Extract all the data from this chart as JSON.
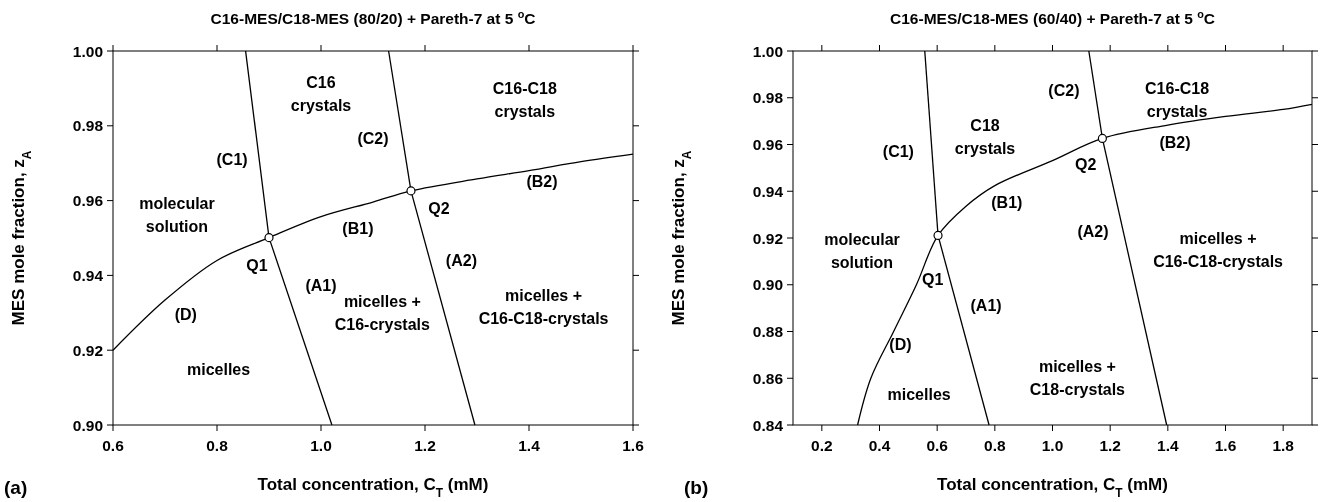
{
  "chart_data": [
    {
      "type": "line",
      "title": "C16-MES/C18-MES (80/20) + Pareth-7 at 5 $^{o}$C",
      "xlabel": "Total concentration, C$_{T}$ (mM)",
      "ylabel": "MES mole fraction, z$_{A}$",
      "xlim": [
        0.6,
        1.6
      ],
      "ylim": [
        0.9,
        1.0
      ],
      "xticks": [
        {
          "value": 0.6,
          "label": "0.6"
        },
        {
          "value": 0.8,
          "label": "0.8"
        },
        {
          "value": 1.0,
          "label": "1.0"
        },
        {
          "value": 1.2,
          "label": "1.2"
        },
        {
          "value": 1.4,
          "label": "1.4"
        },
        {
          "value": 1.6,
          "label": "1.6"
        }
      ],
      "yticks": [
        {
          "value": 0.9,
          "label": "0.90"
        },
        {
          "value": 0.92,
          "label": "0.92"
        },
        {
          "value": 0.94,
          "label": "0.94"
        },
        {
          "value": 0.96,
          "label": "0.96"
        },
        {
          "value": 0.98,
          "label": "0.98"
        },
        {
          "value": 1.0,
          "label": "1.00"
        }
      ],
      "series": [
        {
          "type": "line",
          "color": "#000000",
          "x": [
            0.6,
            0.7,
            0.8,
            0.9,
            1.0,
            1.1,
            1.173,
            1.3,
            1.4,
            1.5,
            1.6
          ],
          "values": [
            0.92,
            0.9334,
            0.944,
            0.9501,
            0.9557,
            0.9596,
            0.9626,
            0.9658,
            0.968,
            0.9704,
            0.9724
          ]
        },
        {
          "type": "line",
          "color": "#000000",
          "x": [
            0.855,
            0.9
          ],
          "values": [
            1.0,
            0.9501
          ]
        },
        {
          "type": "line",
          "color": "#000000",
          "x": [
            0.9,
            1.021
          ],
          "values": [
            0.9501,
            0.9
          ]
        },
        {
          "type": "line",
          "color": "#000000",
          "x": [
            1.13,
            1.173
          ],
          "values": [
            1.0,
            0.9626
          ]
        },
        {
          "type": "line",
          "color": "#000000",
          "x": [
            1.173,
            1.296
          ],
          "values": [
            0.9626,
            0.9
          ]
        },
        {
          "type": "scatter",
          "marker": "circle",
          "color": "#000000",
          "x": [
            0.9,
            1.173
          ],
          "values": [
            0.9501,
            0.9626
          ]
        }
      ],
      "annotations": [
        "C16\ncrystals",
        "C16-C18\ncrystals",
        "(C2)",
        "(C1)",
        "(B2)",
        "molecular\nsolution",
        "Q2",
        "(B1)",
        "Q1",
        "(A2)",
        "(A1)",
        "(D)",
        "micelles +\nC16-crystals",
        "micelles +\nC16-C18-crystals",
        "micelles",
        "(a)"
      ]
    },
    {
      "type": "line",
      "title": "C16-MES/C18-MES (60/40) + Pareth-7 at 5 $^{o}$C",
      "xlabel": "Total concentration, C$_{T}$ (mM)",
      "ylabel": "MES mole fraction, z$_{A}$",
      "xlim": [
        0.1,
        1.9
      ],
      "ylim": [
        0.84,
        1.0
      ],
      "xticks": [
        {
          "value": 0.2,
          "label": "0.2"
        },
        {
          "value": 0.4,
          "label": "0.4"
        },
        {
          "value": 0.6,
          "label": "0.6"
        },
        {
          "value": 0.8,
          "label": "0.8"
        },
        {
          "value": 1.0,
          "label": "1.0"
        },
        {
          "value": 1.2,
          "label": "1.2"
        },
        {
          "value": 1.4,
          "label": "1.4"
        },
        {
          "value": 1.6,
          "label": "1.6"
        },
        {
          "value": 1.8,
          "label": "1.8"
        }
      ],
      "yticks": [
        {
          "value": 0.84,
          "label": "0.84"
        },
        {
          "value": 0.86,
          "label": "0.86"
        },
        {
          "value": 0.88,
          "label": "0.88"
        },
        {
          "value": 0.9,
          "label": "0.90"
        },
        {
          "value": 0.92,
          "label": "0.92"
        },
        {
          "value": 0.94,
          "label": "0.94"
        },
        {
          "value": 0.96,
          "label": "0.96"
        },
        {
          "value": 0.98,
          "label": "0.98"
        },
        {
          "value": 1.0,
          "label": "1.00"
        }
      ],
      "series": [
        {
          "type": "line",
          "color": "#000000",
          "x": [
            0.324,
            0.37,
            0.449,
            0.528,
            0.603,
            0.7,
            0.8,
            1.0,
            1.173,
            1.4,
            1.6,
            1.8,
            1.9
          ],
          "values": [
            0.84,
            0.86,
            0.88,
            0.9,
            0.9211,
            0.9336,
            0.9424,
            0.9531,
            0.9626,
            0.9683,
            0.972,
            0.975,
            0.9772
          ]
        },
        {
          "type": "line",
          "color": "#000000",
          "x": [
            0.557,
            0.603
          ],
          "values": [
            1.0,
            0.9211
          ]
        },
        {
          "type": "line",
          "color": "#000000",
          "x": [
            0.603,
            0.78
          ],
          "values": [
            0.9211,
            0.84
          ]
        },
        {
          "type": "line",
          "color": "#000000",
          "x": [
            1.126,
            1.173
          ],
          "values": [
            1.0,
            0.9626
          ]
        },
        {
          "type": "line",
          "color": "#000000",
          "x": [
            1.173,
            1.396
          ],
          "values": [
            0.9626,
            0.84
          ]
        },
        {
          "type": "scatter",
          "marker": "circle",
          "color": "#000000",
          "x": [
            0.603,
            1.173
          ],
          "values": [
            0.9211,
            0.9626
          ]
        }
      ],
      "annotations": [
        "(C2)",
        "C16-C18\ncrystals",
        "C18\ncrystals",
        "(C1)",
        "(B2)",
        "Q2",
        "(B1)",
        "molecular\nsolution",
        "(A2)",
        "micelles +\nC16-C18-crystals",
        "Q1",
        "(A1)",
        "(D)",
        "micelles +\nC18-crystals",
        "micelles",
        "(b)"
      ]
    }
  ]
}
